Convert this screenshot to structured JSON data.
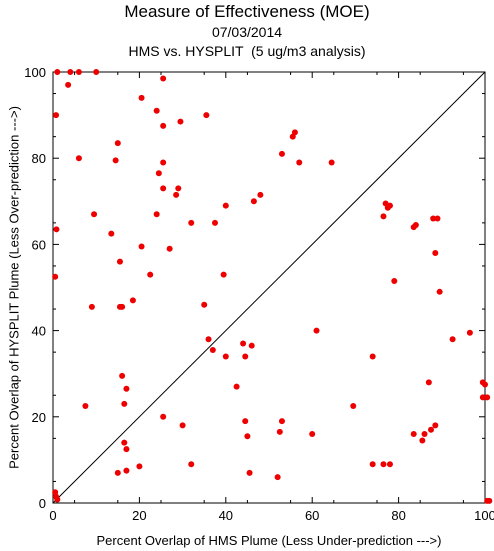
{
  "title": "Measure of Effectiveness (MOE)",
  "date": "07/03/2014",
  "subtitle": "HMS vs. HYSPLIT  (5 ug/m3 analysis)",
  "chart_data": {
    "type": "scatter",
    "xlabel": "Percent Overlap of HMS Plume (Less Under-prediction --->)",
    "ylabel": "Percent Overlap of HYSPLIT Plume (Less Over-prediction --->)",
    "xlim": [
      0,
      100
    ],
    "ylim": [
      0,
      100
    ],
    "xticks": [
      0,
      20,
      40,
      60,
      80,
      100
    ],
    "yticks": [
      0,
      20,
      40,
      60,
      80,
      100
    ],
    "grid": false,
    "reference_line": {
      "from": [
        0,
        0
      ],
      "to": [
        100,
        100
      ]
    },
    "marker_color": "#ee0000",
    "points": [
      [
        1,
        100
      ],
      [
        4,
        100
      ],
      [
        6,
        100
      ],
      [
        10,
        100
      ],
      [
        3.5,
        97
      ],
      [
        0.7,
        90
      ],
      [
        25.5,
        98.5
      ],
      [
        20.5,
        94
      ],
      [
        24,
        91
      ],
      [
        29.5,
        88.5
      ],
      [
        35.5,
        90
      ],
      [
        25.5,
        87.5
      ],
      [
        15,
        83.5
      ],
      [
        56,
        86
      ],
      [
        55.5,
        85
      ],
      [
        14.5,
        79.5
      ],
      [
        6,
        80
      ],
      [
        53,
        81
      ],
      [
        57,
        79
      ],
      [
        64.5,
        79
      ],
      [
        25.5,
        79
      ],
      [
        24.5,
        76.5
      ],
      [
        25.5,
        73
      ],
      [
        29,
        73
      ],
      [
        28.5,
        71.5
      ],
      [
        48,
        71.5
      ],
      [
        46.5,
        70
      ],
      [
        32,
        65
      ],
      [
        37.5,
        65
      ],
      [
        40,
        69
      ],
      [
        24,
        67
      ],
      [
        9.5,
        67
      ],
      [
        76.5,
        66.5
      ],
      [
        77,
        69.5
      ],
      [
        78,
        69
      ],
      [
        77.5,
        68.5
      ],
      [
        83.5,
        64
      ],
      [
        84,
        64.5
      ],
      [
        88,
        66
      ],
      [
        89,
        66
      ],
      [
        0.8,
        63.5
      ],
      [
        13.5,
        62.5
      ],
      [
        20.5,
        59.5
      ],
      [
        27,
        59
      ],
      [
        88.5,
        58
      ],
      [
        15.5,
        56
      ],
      [
        22.5,
        53
      ],
      [
        39.5,
        53
      ],
      [
        0.5,
        52.5
      ],
      [
        79,
        51.5
      ],
      [
        89.5,
        49
      ],
      [
        18.5,
        47
      ],
      [
        35,
        46
      ],
      [
        9,
        45.5
      ],
      [
        15.5,
        45.5
      ],
      [
        16,
        45.5
      ],
      [
        61,
        40
      ],
      [
        96.5,
        39.5
      ],
      [
        36,
        38
      ],
      [
        92.5,
        38
      ],
      [
        44,
        37
      ],
      [
        46,
        36.5
      ],
      [
        37,
        35.5
      ],
      [
        40,
        34
      ],
      [
        74,
        34
      ],
      [
        44.5,
        34
      ],
      [
        16,
        29.5
      ],
      [
        17,
        26.5
      ],
      [
        42.5,
        27
      ],
      [
        87,
        28
      ],
      [
        99.5,
        28
      ],
      [
        100,
        27.5
      ],
      [
        99.5,
        24.5
      ],
      [
        100.5,
        24.5
      ],
      [
        16.5,
        23
      ],
      [
        7.5,
        22.5
      ],
      [
        69.5,
        22.5
      ],
      [
        25.5,
        20
      ],
      [
        44.5,
        19
      ],
      [
        53,
        19
      ],
      [
        30,
        18
      ],
      [
        88.5,
        18
      ],
      [
        87.5,
        17
      ],
      [
        52.5,
        16.5
      ],
      [
        60,
        16
      ],
      [
        45,
        15.5
      ],
      [
        83.5,
        16
      ],
      [
        86,
        16
      ],
      [
        85.5,
        14.5
      ],
      [
        16.5,
        14
      ],
      [
        17,
        12.5
      ],
      [
        20,
        8.5
      ],
      [
        32,
        9
      ],
      [
        74,
        9
      ],
      [
        76.5,
        9
      ],
      [
        78,
        9
      ],
      [
        15,
        7
      ],
      [
        17,
        7.5
      ],
      [
        45.5,
        7
      ],
      [
        52,
        6
      ],
      [
        0.5,
        2.5
      ],
      [
        0.7,
        1.5
      ],
      [
        1,
        0.8
      ],
      [
        101,
        0.5
      ],
      [
        100.5,
        0.5
      ]
    ]
  }
}
